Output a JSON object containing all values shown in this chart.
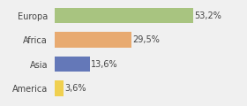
{
  "categories": [
    "Europa",
    "Africa",
    "Asia",
    "America"
  ],
  "values": [
    53.2,
    29.5,
    13.6,
    3.6
  ],
  "labels": [
    "53,2%",
    "29,5%",
    "13,6%",
    "3,6%"
  ],
  "bar_colors": [
    "#a8c480",
    "#e8aa70",
    "#6478b8",
    "#f0d050"
  ],
  "background_color": "#f0f0f0",
  "label_fontsize": 7,
  "category_fontsize": 7,
  "xlim": 72
}
